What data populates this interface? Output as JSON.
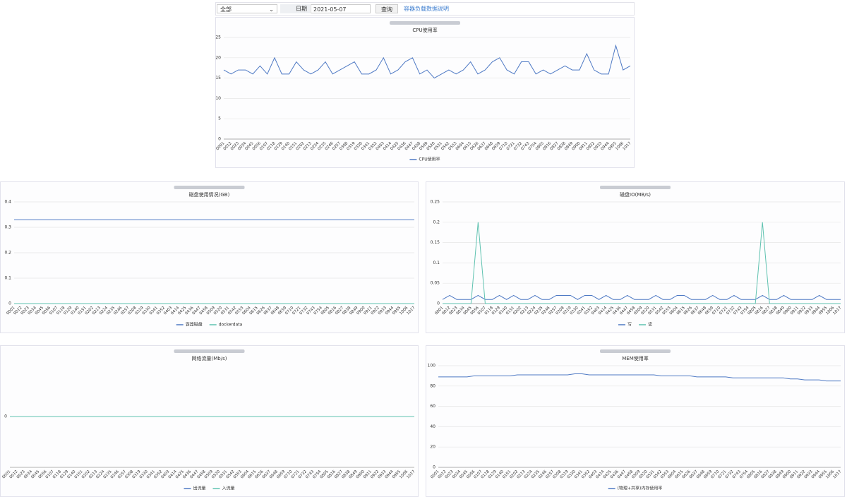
{
  "toolbar": {
    "select": "全部",
    "date_label": "日期",
    "date_value": "2021-05-07",
    "button": "查询",
    "link": "容器负载数据说明"
  },
  "chart_data": [
    {
      "type": "line",
      "title": "CPU使用率",
      "ylim": [
        0,
        25
      ],
      "yticks": [
        0,
        5,
        10,
        15,
        20,
        25
      ],
      "grid": true,
      "categories": [
        "0001",
        "0012",
        "0023",
        "0034",
        "0045",
        "0056",
        "0107",
        "0118",
        "0129",
        "0140",
        "0151",
        "0202",
        "0213",
        "0224",
        "0235",
        "0246",
        "0257",
        "0308",
        "0319",
        "0330",
        "0341",
        "0352",
        "0403",
        "0414",
        "0425",
        "0436",
        "0447",
        "0458",
        "0509",
        "0520",
        "0531",
        "0542",
        "0553",
        "0604",
        "0615",
        "0626",
        "0637",
        "0648",
        "0659",
        "0710",
        "0721",
        "0732",
        "0743",
        "0754",
        "0805",
        "0816",
        "0827",
        "0838",
        "0849",
        "0900",
        "0911",
        "0922",
        "0933",
        "0944",
        "0955",
        "1006",
        "1017"
      ],
      "series": [
        {
          "name": "CPU使用率",
          "color": "#4e79c4",
          "values": [
            17,
            16,
            17,
            17,
            16,
            18,
            16,
            20,
            16,
            16,
            19,
            17,
            16,
            17,
            19,
            16,
            17,
            18,
            19,
            16,
            16,
            17,
            20,
            16,
            17,
            19,
            20,
            16,
            17,
            15,
            16,
            17,
            16,
            17,
            19,
            16,
            17,
            19,
            20,
            17,
            16,
            19,
            19,
            16,
            17,
            16,
            17,
            18,
            17,
            17,
            21,
            17,
            16,
            16,
            23,
            17,
            18
          ]
        }
      ]
    },
    {
      "type": "line",
      "title": "磁盘使用情况(GB)",
      "ylim": [
        0,
        0.4
      ],
      "yticks": [
        0,
        0.1,
        0.2,
        0.3,
        0.4
      ],
      "grid": true,
      "categories": [
        "0001",
        "0012",
        "0023",
        "0034",
        "0045",
        "0056",
        "0107",
        "0118",
        "0129",
        "0140",
        "0151",
        "0202",
        "0213",
        "0224",
        "0235",
        "0246",
        "0257",
        "0308",
        "0319",
        "0330",
        "0341",
        "0352",
        "0403",
        "0414",
        "0425",
        "0436",
        "0447",
        "0458",
        "0509",
        "0520",
        "0531",
        "0542",
        "0553",
        "0604",
        "0615",
        "0626",
        "0637",
        "0648",
        "0659",
        "0710",
        "0721",
        "0732",
        "0743",
        "0754",
        "0805",
        "0816",
        "0827",
        "0838",
        "0849",
        "0900",
        "0911",
        "0922",
        "0933",
        "0944",
        "0955",
        "1006",
        "1017"
      ],
      "series": [
        {
          "name": "容器磁盘",
          "color": "#4e79c4",
          "values": [
            0.33,
            0.33,
            0.33,
            0.33,
            0.33,
            0.33,
            0.33,
            0.33,
            0.33,
            0.33,
            0.33,
            0.33,
            0.33,
            0.33,
            0.33,
            0.33,
            0.33,
            0.33,
            0.33,
            0.33,
            0.33,
            0.33,
            0.33,
            0.33,
            0.33,
            0.33,
            0.33,
            0.33,
            0.33,
            0.33,
            0.33,
            0.33,
            0.33,
            0.33,
            0.33,
            0.33,
            0.33,
            0.33,
            0.33,
            0.33,
            0.33,
            0.33,
            0.33,
            0.33,
            0.33,
            0.33,
            0.33,
            0.33,
            0.33,
            0.33,
            0.33,
            0.33,
            0.33,
            0.33,
            0.33,
            0.33,
            0.33
          ]
        },
        {
          "name": "dockerdata",
          "color": "#5fc2b0",
          "values": [
            0,
            0,
            0,
            0,
            0,
            0,
            0,
            0,
            0,
            0,
            0,
            0,
            0,
            0,
            0,
            0,
            0,
            0,
            0,
            0,
            0,
            0,
            0,
            0,
            0,
            0,
            0,
            0,
            0,
            0,
            0,
            0,
            0,
            0,
            0,
            0,
            0,
            0,
            0,
            0,
            0,
            0,
            0,
            0,
            0,
            0,
            0,
            0,
            0,
            0,
            0,
            0,
            0,
            0,
            0,
            0,
            0
          ]
        }
      ]
    },
    {
      "type": "line",
      "title": "磁盘IO(MB/s)",
      "ylim": [
        0,
        0.25
      ],
      "yticks": [
        0,
        0.05,
        0.1,
        0.15,
        0.2,
        0.25
      ],
      "grid": true,
      "categories": [
        "0001",
        "0012",
        "0023",
        "0034",
        "0045",
        "0056",
        "0107",
        "0118",
        "0129",
        "0140",
        "0151",
        "0202",
        "0213",
        "0224",
        "0235",
        "0246",
        "0257",
        "0308",
        "0319",
        "0330",
        "0341",
        "0352",
        "0403",
        "0414",
        "0425",
        "0436",
        "0447",
        "0458",
        "0509",
        "0520",
        "0531",
        "0542",
        "0553",
        "0604",
        "0615",
        "0626",
        "0637",
        "0648",
        "0659",
        "0710",
        "0721",
        "0732",
        "0743",
        "0754",
        "0805",
        "0816",
        "0827",
        "0838",
        "0849",
        "0900",
        "0911",
        "0922",
        "0933",
        "0944",
        "0955",
        "1006",
        "1017"
      ],
      "series": [
        {
          "name": "写",
          "color": "#4e79c4",
          "values": [
            0.01,
            0.02,
            0.01,
            0.01,
            0.01,
            0.02,
            0.01,
            0.01,
            0.02,
            0.01,
            0.02,
            0.01,
            0.01,
            0.02,
            0.01,
            0.01,
            0.02,
            0.02,
            0.02,
            0.01,
            0.02,
            0.02,
            0.01,
            0.02,
            0.01,
            0.01,
            0.02,
            0.01,
            0.01,
            0.01,
            0.02,
            0.01,
            0.01,
            0.02,
            0.02,
            0.01,
            0.01,
            0.01,
            0.02,
            0.01,
            0.01,
            0.02,
            0.01,
            0.01,
            0.01,
            0.02,
            0.01,
            0.01,
            0.02,
            0.01,
            0.01,
            0.01,
            0.01,
            0.02,
            0.01,
            0.01,
            0.01
          ]
        },
        {
          "name": "读",
          "color": "#5fc2b0",
          "values": [
            0,
            0,
            0,
            0,
            0,
            0.2,
            0,
            0,
            0,
            0,
            0,
            0,
            0,
            0,
            0,
            0,
            0,
            0,
            0,
            0,
            0,
            0,
            0,
            0,
            0,
            0,
            0,
            0,
            0,
            0,
            0,
            0,
            0,
            0,
            0,
            0,
            0,
            0,
            0,
            0,
            0,
            0,
            0,
            0,
            0,
            0.2,
            0,
            0,
            0,
            0,
            0,
            0,
            0,
            0,
            0,
            0,
            0
          ]
        }
      ]
    },
    {
      "type": "line",
      "title": "网络流量(Mb/s)",
      "ylim": [
        -1,
        1
      ],
      "yticks": [
        0
      ],
      "grid": true,
      "categories": [
        "0001",
        "0012",
        "0023",
        "0034",
        "0045",
        "0056",
        "0107",
        "0118",
        "0129",
        "0140",
        "0151",
        "0202",
        "0213",
        "0224",
        "0235",
        "0246",
        "0257",
        "0308",
        "0319",
        "0330",
        "0341",
        "0352",
        "0403",
        "0414",
        "0425",
        "0436",
        "0447",
        "0458",
        "0509",
        "0520",
        "0531",
        "0542",
        "0553",
        "0604",
        "0615",
        "0626",
        "0637",
        "0648",
        "0659",
        "0710",
        "0721",
        "0732",
        "0743",
        "0754",
        "0805",
        "0816",
        "0827",
        "0838",
        "0849",
        "0900",
        "0911",
        "0922",
        "0933",
        "0944",
        "0955",
        "1006",
        "1017"
      ],
      "series": [
        {
          "name": "出流量",
          "color": "#4e79c4",
          "values": [
            0,
            0,
            0,
            0,
            0,
            0,
            0,
            0,
            0,
            0,
            0,
            0,
            0,
            0,
            0,
            0,
            0,
            0,
            0,
            0,
            0,
            0,
            0,
            0,
            0,
            0,
            0,
            0,
            0,
            0,
            0,
            0,
            0,
            0,
            0,
            0,
            0,
            0,
            0,
            0,
            0,
            0,
            0,
            0,
            0,
            0,
            0,
            0,
            0,
            0,
            0,
            0,
            0,
            0,
            0,
            0,
            0
          ]
        },
        {
          "name": "入流量",
          "color": "#5fc2b0",
          "values": [
            0,
            0,
            0,
            0,
            0,
            0,
            0,
            0,
            0,
            0,
            0,
            0,
            0,
            0,
            0,
            0,
            0,
            0,
            0,
            0,
            0,
            0,
            0,
            0,
            0,
            0,
            0,
            0,
            0,
            0,
            0,
            0,
            0,
            0,
            0,
            0,
            0,
            0,
            0,
            0,
            0,
            0,
            0,
            0,
            0,
            0,
            0,
            0,
            0,
            0,
            0,
            0,
            0,
            0,
            0,
            0,
            0
          ]
        }
      ]
    },
    {
      "type": "line",
      "title": "MEM使用率",
      "ylim": [
        0,
        100
      ],
      "yticks": [
        0,
        20,
        40,
        60,
        80,
        100
      ],
      "grid": true,
      "categories": [
        "0001",
        "0012",
        "0023",
        "0034",
        "0045",
        "0056",
        "0107",
        "0118",
        "0129",
        "0140",
        "0151",
        "0202",
        "0213",
        "0224",
        "0235",
        "0246",
        "0257",
        "0308",
        "0319",
        "0330",
        "0341",
        "0352",
        "0403",
        "0414",
        "0425",
        "0436",
        "0447",
        "0458",
        "0509",
        "0520",
        "0531",
        "0542",
        "0553",
        "0604",
        "0615",
        "0626",
        "0637",
        "0648",
        "0659",
        "0710",
        "0721",
        "0732",
        "0743",
        "0754",
        "0805",
        "0816",
        "0827",
        "0838",
        "0849",
        "0900",
        "0911",
        "0922",
        "0933",
        "0944",
        "0955",
        "1006",
        "1017"
      ],
      "series": [
        {
          "name": "(物理+共享)内存使用率",
          "color": "#4e79c4",
          "values": [
            89,
            89,
            89,
            89,
            89,
            90,
            90,
            90,
            90,
            90,
            90,
            91,
            91,
            91,
            91,
            91,
            91,
            91,
            91,
            92,
            92,
            91,
            91,
            91,
            91,
            91,
            91,
            91,
            91,
            91,
            91,
            90,
            90,
            90,
            90,
            90,
            89,
            89,
            89,
            89,
            89,
            88,
            88,
            88,
            88,
            88,
            88,
            88,
            88,
            87,
            87,
            86,
            86,
            86,
            85,
            85,
            85
          ]
        }
      ]
    }
  ]
}
